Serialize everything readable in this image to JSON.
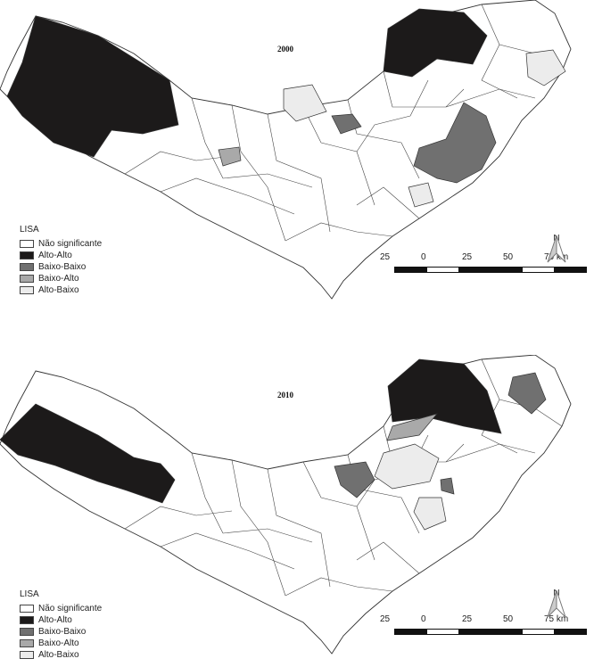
{
  "categories_colors": {
    "Não significante": "#ffffff",
    "Alto-Alto": "#1c1a1a",
    "Baixo-Baixo": "#707070",
    "Baixo-Alto": "#a9a9a9",
    "Alto-Baixo": "#ececec"
  },
  "maps": [
    {
      "title": "2000",
      "legend": {
        "title": "LISA",
        "items": [
          "Não significante",
          "Alto-Alto",
          "Baixo-Baixo",
          "Baixo-Alto",
          "Alto-Baixo"
        ]
      },
      "regions": [
        "Alto-Alto",
        "Alto-Alto",
        "Alto-Baixo",
        "Alto-Baixo",
        "Baixo-Baixo",
        "Baixo-Baixo",
        "Baixo-Alto",
        "Alto-Baixo"
      ],
      "scale": {
        "labels": [
          "25",
          "0",
          "25",
          "50",
          "75 km"
        ]
      },
      "north": "N"
    },
    {
      "title": "2010",
      "legend": {
        "title": "LISA",
        "items": [
          "Não significante",
          "Alto-Alto",
          "Baixo-Baixo",
          "Baixo-Alto",
          "Alto-Baixo"
        ]
      },
      "regions": [
        "Alto-Alto",
        "Alto-Alto",
        "Baixo-Alto",
        "Baixo-Baixo",
        "Baixo-Baixo",
        "Alto-Baixo",
        "Baixo-Baixo",
        "Alto-Baixo"
      ],
      "scale": {
        "labels": [
          "25",
          "0",
          "25",
          "50",
          "75 km"
        ]
      },
      "north": "N"
    }
  ]
}
